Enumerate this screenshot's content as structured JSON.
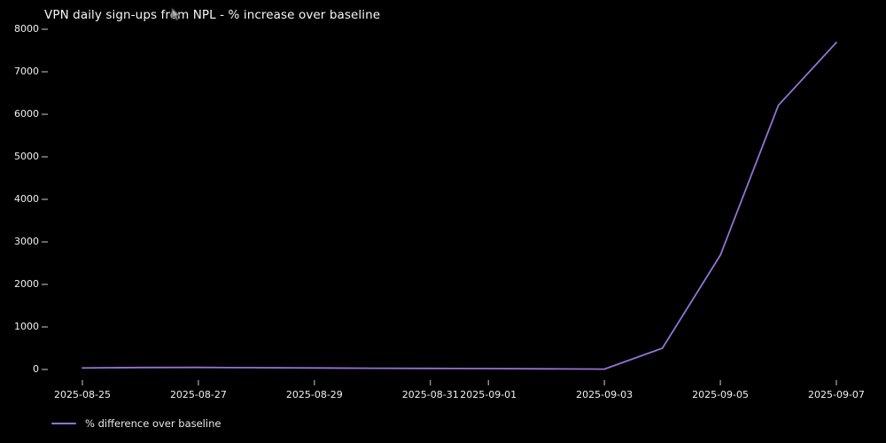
{
  "window": {
    "background_color": "#000000",
    "text_color": "#f0f0f0"
  },
  "cursor": {
    "icon": "mouse-pointer-icon"
  },
  "legend": {
    "label": "% difference over baseline",
    "swatch_color": "#9472d4"
  },
  "chart_data": {
    "type": "line",
    "title": "VPN daily sign-ups from NPL - % increase over baseline",
    "xlabel": "",
    "ylabel": "",
    "grid": false,
    "legend_position": "lower-left-below-axis",
    "background": "#000000",
    "line_color": "#9472d4",
    "tick_color": "#cccccc",
    "x": [
      "2025-08-25",
      "2025-08-26",
      "2025-08-27",
      "2025-08-28",
      "2025-08-29",
      "2025-08-30",
      "2025-08-31",
      "2025-09-01",
      "2025-09-02",
      "2025-09-03",
      "2025-09-04",
      "2025-09-05",
      "2025-09-06",
      "2025-09-07"
    ],
    "series": [
      {
        "name": "% difference over baseline",
        "values": [
          35,
          45,
          48,
          42,
          36,
          30,
          25,
          20,
          14,
          8,
          500,
          2690,
          6210,
          7690
        ]
      }
    ],
    "xticks": [
      "2025-08-25",
      "2025-08-27",
      "2025-08-29",
      "2025-08-31",
      "2025-09-01",
      "2025-09-03",
      "2025-09-05",
      "2025-09-07"
    ],
    "yticks": [
      0,
      1000,
      2000,
      3000,
      4000,
      5000,
      6000,
      7000,
      8000
    ],
    "ylim": [
      -380,
      8080
    ],
    "xlim": [
      "2025-08-24",
      "2025-09-07"
    ]
  }
}
